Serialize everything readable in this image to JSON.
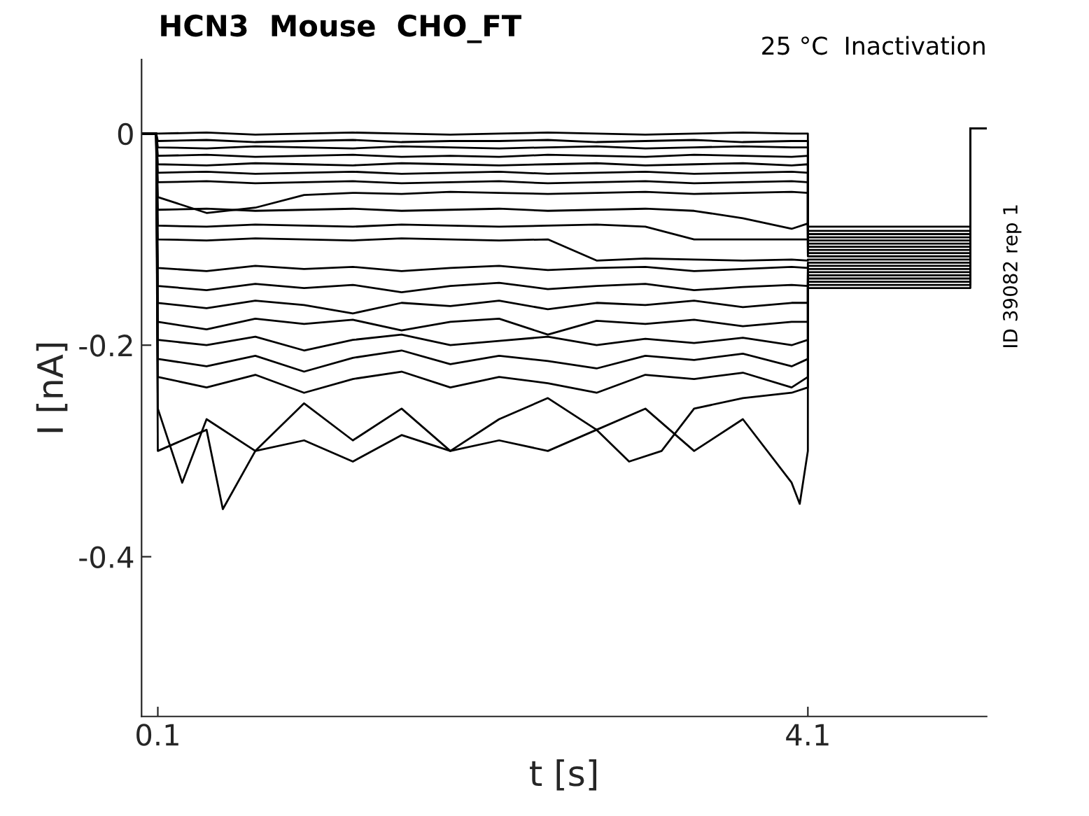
{
  "chart_data": {
    "type": "line",
    "title": "HCN3  Mouse  CHO_FT",
    "xlabel": "t [s]",
    "ylabel": "I [nA]",
    "annotations": [
      "25 °C  Inactivation",
      "ID 39082 rep 1"
    ],
    "xlim": [
      0,
      5.2
    ],
    "ylim": [
      -0.551,
      0.07
    ],
    "xticks": [
      0.1,
      4.1
    ],
    "yticks": [
      -0.4,
      -0.2,
      0
    ],
    "grid": false,
    "legend": false,
    "marker": "none",
    "line_style": "solid",
    "series": [
      {
        "color": "#000000",
        "x": [
          0.005,
          0.09,
          0.1,
          0.4,
          0.7,
          1.0,
          1.3,
          1.6,
          1.9,
          2.2,
          2.5,
          2.8,
          3.1,
          3.4,
          3.7,
          4.0,
          4.1,
          4.1,
          5.1,
          5.1,
          5.2
        ],
        "values": [
          0,
          0,
          0,
          0.001,
          -0.001,
          0,
          0.001,
          0,
          -0.001,
          0,
          0.001,
          0,
          -0.001,
          0,
          0.001,
          0,
          0,
          -0.088,
          -0.088,
          0.005,
          0.005
        ]
      },
      {
        "color": "#000000",
        "x": [
          0.005,
          0.09,
          0.1,
          0.4,
          0.7,
          1.0,
          1.3,
          1.6,
          1.9,
          2.2,
          2.5,
          2.8,
          3.1,
          3.4,
          3.7,
          4.0,
          4.1,
          4.1,
          5.1,
          5.1,
          5.2
        ],
        "values": [
          0,
          0,
          -0.007,
          -0.006,
          -0.008,
          -0.007,
          -0.006,
          -0.008,
          -0.007,
          -0.007,
          -0.006,
          -0.008,
          -0.007,
          -0.006,
          -0.008,
          -0.007,
          -0.007,
          -0.092,
          -0.092,
          0.005,
          0.005
        ]
      },
      {
        "color": "#000000",
        "x": [
          0.005,
          0.09,
          0.1,
          0.4,
          0.7,
          1.0,
          1.3,
          1.6,
          1.9,
          2.2,
          2.5,
          2.8,
          3.1,
          3.4,
          3.7,
          4.0,
          4.1,
          4.1,
          5.1,
          5.1,
          5.2
        ],
        "values": [
          0,
          0,
          -0.013,
          -0.014,
          -0.012,
          -0.013,
          -0.014,
          -0.012,
          -0.013,
          -0.014,
          -0.013,
          -0.012,
          -0.014,
          -0.013,
          -0.012,
          -0.013,
          -0.013,
          -0.095,
          -0.095,
          0.005,
          0.005
        ]
      },
      {
        "color": "#000000",
        "x": [
          0.005,
          0.09,
          0.1,
          0.4,
          0.7,
          1.0,
          1.3,
          1.6,
          1.9,
          2.2,
          2.5,
          2.8,
          3.1,
          3.4,
          3.7,
          4.0,
          4.1,
          4.1,
          5.1,
          5.1,
          5.2
        ],
        "values": [
          0,
          0,
          -0.021,
          -0.02,
          -0.022,
          -0.021,
          -0.02,
          -0.022,
          -0.021,
          -0.022,
          -0.02,
          -0.021,
          -0.022,
          -0.02,
          -0.021,
          -0.022,
          -0.021,
          -0.098,
          -0.098,
          0.005,
          0.005
        ]
      },
      {
        "color": "#000000",
        "x": [
          0.005,
          0.09,
          0.1,
          0.4,
          0.7,
          1.0,
          1.3,
          1.6,
          1.9,
          2.2,
          2.5,
          2.8,
          3.1,
          3.4,
          3.7,
          4.0,
          4.1,
          4.1,
          5.1,
          5.1,
          5.2
        ],
        "values": [
          0,
          0,
          -0.029,
          -0.03,
          -0.028,
          -0.029,
          -0.03,
          -0.028,
          -0.029,
          -0.03,
          -0.029,
          -0.028,
          -0.03,
          -0.029,
          -0.028,
          -0.03,
          -0.029,
          -0.101,
          -0.101,
          0.005,
          0.005
        ]
      },
      {
        "color": "#000000",
        "x": [
          0.005,
          0.09,
          0.1,
          0.4,
          0.7,
          1.0,
          1.3,
          1.6,
          1.9,
          2.2,
          2.5,
          2.8,
          3.1,
          3.4,
          3.7,
          4.0,
          4.1,
          4.1,
          5.1,
          5.1,
          5.2
        ],
        "values": [
          0,
          0,
          -0.037,
          -0.036,
          -0.038,
          -0.037,
          -0.036,
          -0.038,
          -0.037,
          -0.036,
          -0.038,
          -0.037,
          -0.036,
          -0.038,
          -0.037,
          -0.036,
          -0.037,
          -0.104,
          -0.104,
          0.005,
          0.005
        ]
      },
      {
        "color": "#000000",
        "x": [
          0.005,
          0.09,
          0.1,
          0.4,
          0.7,
          1.0,
          1.3,
          1.6,
          1.9,
          2.2,
          2.5,
          2.8,
          3.1,
          3.4,
          3.7,
          4.0,
          4.1,
          4.1,
          5.1,
          5.1,
          5.2
        ],
        "values": [
          0,
          0,
          -0.046,
          -0.045,
          -0.047,
          -0.046,
          -0.045,
          -0.047,
          -0.046,
          -0.045,
          -0.047,
          -0.046,
          -0.045,
          -0.047,
          -0.046,
          -0.045,
          -0.046,
          -0.107,
          -0.107,
          0.005,
          0.005
        ]
      },
      {
        "color": "#000000",
        "x": [
          0.005,
          0.09,
          0.1,
          0.4,
          0.7,
          1.0,
          1.3,
          1.6,
          1.9,
          2.2,
          2.5,
          2.8,
          3.1,
          3.4,
          3.7,
          4.0,
          4.1,
          4.1,
          5.1,
          5.1,
          5.2
        ],
        "values": [
          0,
          0,
          -0.06,
          -0.075,
          -0.07,
          -0.058,
          -0.056,
          -0.057,
          -0.055,
          -0.056,
          -0.057,
          -0.056,
          -0.055,
          -0.057,
          -0.056,
          -0.055,
          -0.056,
          -0.11,
          -0.11,
          0.005,
          0.005
        ]
      },
      {
        "color": "#000000",
        "x": [
          0.005,
          0.09,
          0.1,
          0.4,
          0.7,
          1.0,
          1.3,
          1.6,
          1.9,
          2.2,
          2.5,
          2.8,
          3.1,
          3.4,
          3.7,
          4.0,
          4.1,
          4.1,
          5.1,
          5.1,
          5.2
        ],
        "values": [
          0,
          0,
          -0.072,
          -0.071,
          -0.073,
          -0.072,
          -0.071,
          -0.073,
          -0.072,
          -0.071,
          -0.073,
          -0.072,
          -0.071,
          -0.073,
          -0.08,
          -0.09,
          -0.085,
          -0.113,
          -0.113,
          0.005,
          0.005
        ]
      },
      {
        "color": "#000000",
        "x": [
          0.005,
          0.09,
          0.1,
          0.4,
          0.7,
          1.0,
          1.3,
          1.6,
          1.9,
          2.2,
          2.5,
          2.8,
          3.1,
          3.4,
          3.7,
          4.0,
          4.1,
          4.1,
          5.1,
          5.1,
          5.2
        ],
        "values": [
          0,
          0,
          -0.087,
          -0.088,
          -0.086,
          -0.087,
          -0.088,
          -0.086,
          -0.087,
          -0.088,
          -0.087,
          -0.086,
          -0.088,
          -0.1,
          -0.1,
          -0.1,
          -0.1,
          -0.116,
          -0.116,
          0.005,
          0.005
        ]
      },
      {
        "color": "#000000",
        "x": [
          0.005,
          0.09,
          0.1,
          0.4,
          0.7,
          1.0,
          1.3,
          1.6,
          1.9,
          2.2,
          2.5,
          2.8,
          3.1,
          3.4,
          3.7,
          4.0,
          4.1,
          4.1,
          5.1,
          5.1,
          5.2
        ],
        "values": [
          0,
          0,
          -0.1,
          -0.101,
          -0.099,
          -0.1,
          -0.101,
          -0.099,
          -0.1,
          -0.101,
          -0.1,
          -0.12,
          -0.118,
          -0.119,
          -0.12,
          -0.119,
          -0.12,
          -0.119,
          -0.119,
          0.005,
          0.005
        ]
      },
      {
        "color": "#000000",
        "x": [
          0.005,
          0.09,
          0.1,
          0.4,
          0.7,
          1.0,
          1.3,
          1.6,
          1.9,
          2.2,
          2.5,
          2.8,
          3.1,
          3.4,
          3.7,
          4.0,
          4.1,
          4.1,
          5.1,
          5.1,
          5.2
        ],
        "values": [
          0,
          0,
          -0.127,
          -0.13,
          -0.125,
          -0.128,
          -0.126,
          -0.13,
          -0.127,
          -0.125,
          -0.129,
          -0.127,
          -0.126,
          -0.13,
          -0.128,
          -0.126,
          -0.127,
          -0.122,
          -0.122,
          0.005,
          0.005
        ]
      },
      {
        "color": "#000000",
        "x": [
          0.005,
          0.09,
          0.1,
          0.4,
          0.7,
          1.0,
          1.3,
          1.6,
          1.9,
          2.2,
          2.5,
          2.8,
          3.1,
          3.4,
          3.7,
          4.0,
          4.1,
          4.1,
          5.1,
          5.1,
          5.2
        ],
        "values": [
          0,
          0,
          -0.144,
          -0.148,
          -0.142,
          -0.146,
          -0.143,
          -0.15,
          -0.144,
          -0.141,
          -0.147,
          -0.144,
          -0.142,
          -0.148,
          -0.145,
          -0.143,
          -0.144,
          -0.125,
          -0.125,
          0.005,
          0.005
        ]
      },
      {
        "color": "#000000",
        "x": [
          0.005,
          0.09,
          0.1,
          0.4,
          0.7,
          1.0,
          1.3,
          1.6,
          1.9,
          2.2,
          2.5,
          2.8,
          3.1,
          3.4,
          3.7,
          4.0,
          4.1,
          4.1,
          5.1,
          5.1,
          5.2
        ],
        "values": [
          0,
          0,
          -0.16,
          -0.165,
          -0.158,
          -0.162,
          -0.17,
          -0.16,
          -0.163,
          -0.158,
          -0.166,
          -0.16,
          -0.162,
          -0.158,
          -0.164,
          -0.16,
          -0.16,
          -0.128,
          -0.128,
          0.005,
          0.005
        ]
      },
      {
        "color": "#000000",
        "x": [
          0.005,
          0.09,
          0.1,
          0.4,
          0.7,
          1.0,
          1.3,
          1.6,
          1.9,
          2.2,
          2.5,
          2.8,
          3.1,
          3.4,
          3.7,
          4.0,
          4.1,
          4.1,
          5.1,
          5.1,
          5.2
        ],
        "values": [
          0,
          0,
          -0.178,
          -0.185,
          -0.175,
          -0.18,
          -0.176,
          -0.186,
          -0.178,
          -0.175,
          -0.19,
          -0.177,
          -0.18,
          -0.176,
          -0.182,
          -0.178,
          -0.178,
          -0.131,
          -0.131,
          0.005,
          0.005
        ]
      },
      {
        "color": "#000000",
        "x": [
          0.005,
          0.09,
          0.1,
          0.4,
          0.7,
          1.0,
          1.3,
          1.6,
          1.9,
          2.2,
          2.5,
          2.8,
          3.1,
          3.4,
          3.7,
          4.0,
          4.1,
          4.1,
          5.1,
          5.1,
          5.2
        ],
        "values": [
          0,
          0,
          -0.195,
          -0.2,
          -0.192,
          -0.205,
          -0.195,
          -0.19,
          -0.2,
          -0.196,
          -0.192,
          -0.2,
          -0.194,
          -0.198,
          -0.193,
          -0.2,
          -0.195,
          -0.134,
          -0.134,
          0.005,
          0.005
        ]
      },
      {
        "color": "#000000",
        "x": [
          0.005,
          0.09,
          0.1,
          0.4,
          0.7,
          1.0,
          1.3,
          1.6,
          1.9,
          2.2,
          2.5,
          2.8,
          3.1,
          3.4,
          3.7,
          4.0,
          4.1,
          4.1,
          5.1,
          5.1,
          5.2
        ],
        "values": [
          0,
          0,
          -0.213,
          -0.22,
          -0.21,
          -0.225,
          -0.212,
          -0.205,
          -0.218,
          -0.21,
          -0.215,
          -0.222,
          -0.21,
          -0.214,
          -0.208,
          -0.22,
          -0.213,
          -0.137,
          -0.137,
          0.005,
          0.005
        ]
      },
      {
        "color": "#000000",
        "x": [
          0.005,
          0.09,
          0.1,
          0.4,
          0.7,
          1.0,
          1.3,
          1.6,
          1.9,
          2.2,
          2.5,
          2.8,
          3.1,
          3.4,
          3.7,
          4.0,
          4.1,
          4.1,
          5.1,
          5.1,
          5.2
        ],
        "values": [
          0,
          0,
          -0.23,
          -0.24,
          -0.228,
          -0.245,
          -0.232,
          -0.225,
          -0.24,
          -0.23,
          -0.236,
          -0.245,
          -0.228,
          -0.232,
          -0.226,
          -0.24,
          -0.23,
          -0.14,
          -0.14,
          0.005,
          0.005
        ]
      },
      {
        "color": "#000000",
        "x": [
          0.005,
          0.09,
          0.1,
          0.25,
          0.4,
          0.7,
          1.0,
          1.3,
          1.6,
          1.9,
          2.2,
          2.5,
          2.8,
          3.1,
          3.4,
          3.7,
          4.0,
          4.05,
          4.1,
          4.1,
          5.1,
          5.1,
          5.2
        ],
        "values": [
          0,
          0,
          -0.26,
          -0.33,
          -0.27,
          -0.3,
          -0.255,
          -0.29,
          -0.26,
          -0.3,
          -0.27,
          -0.25,
          -0.28,
          -0.26,
          -0.3,
          -0.27,
          -0.33,
          -0.35,
          -0.3,
          -0.143,
          -0.143,
          0.005,
          0.005
        ]
      },
      {
        "color": "#000000",
        "x": [
          0.005,
          0.09,
          0.1,
          0.4,
          0.5,
          0.7,
          1.0,
          1.3,
          1.6,
          1.9,
          2.2,
          2.5,
          2.8,
          3.0,
          3.2,
          3.4,
          3.7,
          4.0,
          4.1,
          4.1,
          5.1,
          5.1,
          5.2
        ],
        "values": [
          0,
          0,
          -0.3,
          -0.28,
          -0.355,
          -0.3,
          -0.29,
          -0.31,
          -0.285,
          -0.3,
          -0.29,
          -0.3,
          -0.28,
          -0.31,
          -0.3,
          -0.26,
          -0.25,
          -0.245,
          -0.24,
          -0.146,
          -0.146,
          0.005,
          0.005
        ]
      }
    ]
  }
}
